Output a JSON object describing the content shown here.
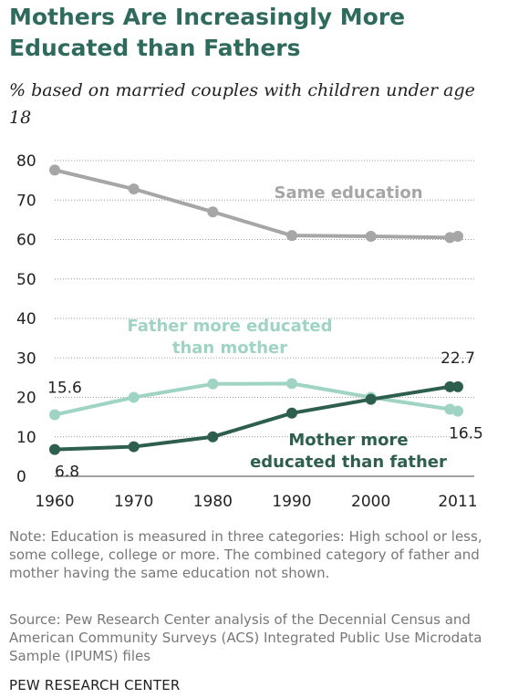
{
  "header": {
    "title": "Mothers Are Increasingly More Educated than Fathers",
    "subtitle": "% based on married couples with children under age 18"
  },
  "footer": {
    "note": "Note: Education is measured in three categories: High school or less, some college, college or more. The combined category of father and mother having the same education not shown.",
    "source": "Source: Pew Research Center analysis of the Decennial Census and American Community Surveys (ACS) Integrated Public Use Microdata Sample (IPUMS) files",
    "brand": "PEW RESEARCH CENTER"
  },
  "chart_data": {
    "type": "line",
    "title": "Mothers Are Increasingly More Educated than Fathers",
    "subtitle": "% based on married couples with children under age 18",
    "xlabel": "",
    "ylabel": "",
    "x": [
      1960,
      1970,
      1980,
      1990,
      2000,
      2010,
      2011
    ],
    "x_tick_labels": [
      "1960",
      "1970",
      "1980",
      "1990",
      "2000",
      "2011"
    ],
    "xlim": [
      1960,
      2011
    ],
    "ylim": [
      0,
      80
    ],
    "y_ticks": [
      0,
      10,
      20,
      30,
      40,
      50,
      60,
      70,
      80
    ],
    "grid": "horizontal dotted",
    "series": [
      {
        "name": "Same education",
        "color": "#a6a6a6",
        "values": [
          77.6,
          72.8,
          67.0,
          61.0,
          60.8,
          60.5,
          60.8
        ],
        "label_lines": [
          "Same education"
        ]
      },
      {
        "name": "Father more educated than mother",
        "color": "#9fd3c4",
        "values": [
          15.6,
          20.0,
          23.4,
          23.5,
          20.0,
          17.0,
          16.5
        ],
        "label_lines": [
          "Father more educated",
          "than mother"
        ]
      },
      {
        "name": "Mother more educated than father",
        "color": "#2e5e4e",
        "values": [
          6.8,
          7.5,
          10.0,
          16.0,
          19.5,
          22.7,
          22.7
        ],
        "label_lines": [
          "Mother more",
          "educated than father"
        ]
      }
    ],
    "data_labels": [
      {
        "series": 1,
        "point": 0,
        "text": "15.6"
      },
      {
        "series": 2,
        "point": 0,
        "text": "6.8"
      },
      {
        "series": 2,
        "point": 6,
        "text": "22.7"
      },
      {
        "series": 1,
        "point": 6,
        "text": "16.5"
      }
    ]
  }
}
